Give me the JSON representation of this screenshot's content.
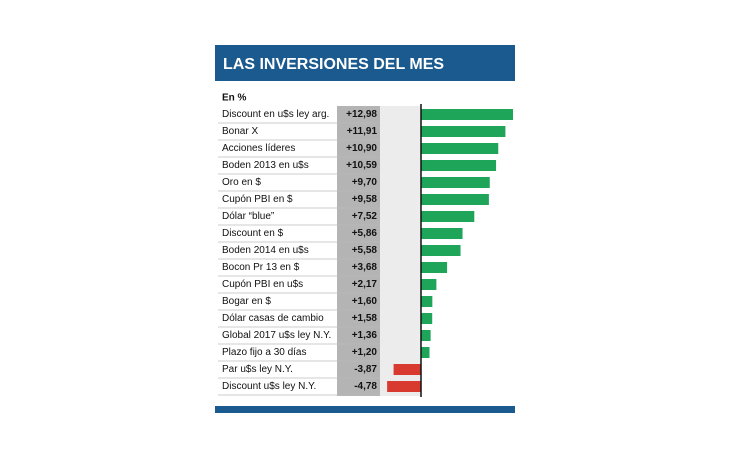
{
  "chart_data": {
    "type": "bar",
    "title": "LAS INVERSIONES DEL MES",
    "subtitle": "En %",
    "categories": [
      "Discount en u$s ley arg.",
      "Bonar X",
      "Acciones líderes",
      "Boden 2013 en u$s",
      "Oro en $",
      "Cupón PBI en $",
      "Dólar “blue”",
      "Discount en $",
      "Boden 2014 en u$s",
      "Bocon Pr 13 en $",
      "Cupón PBI en u$s",
      "Bogar en $",
      "Dólar casas de cambio",
      "Global 2017 u$s ley N.Y.",
      "Plazo fijo a 30 días",
      "Par u$s ley N.Y.",
      "Discount u$s ley N.Y."
    ],
    "values": [
      12.98,
      11.91,
      10.9,
      10.59,
      9.7,
      9.58,
      7.52,
      5.86,
      5.58,
      3.68,
      2.17,
      1.6,
      1.58,
      1.36,
      1.2,
      -3.87,
      -4.78
    ],
    "value_labels": [
      "+12,98",
      "+11,91",
      "+10,90",
      "+10,59",
      "+9,70",
      "+9,58",
      "+7,52",
      "+5,86",
      "+5,58",
      "+3,68",
      "+2,17",
      "+1,60",
      "+1,58",
      "+1,36",
      "+1,20",
      "-3,87",
      "-4,78"
    ],
    "colors": {
      "positive": "#1ea55a",
      "negative": "#d93a30"
    }
  }
}
